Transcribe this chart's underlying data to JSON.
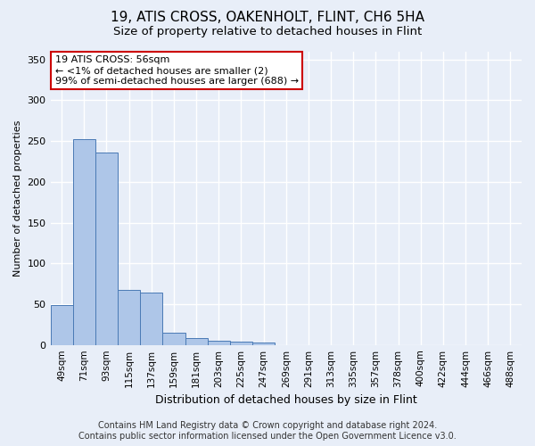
{
  "title1": "19, ATIS CROSS, OAKENHOLT, FLINT, CH6 5HA",
  "title2": "Size of property relative to detached houses in Flint",
  "xlabel": "Distribution of detached houses by size in Flint",
  "ylabel": "Number of detached properties",
  "footer1": "Contains HM Land Registry data © Crown copyright and database right 2024.",
  "footer2": "Contains public sector information licensed under the Open Government Licence v3.0.",
  "annotation_title": "19 ATIS CROSS: 56sqm",
  "annotation_line1": "← <1% of detached houses are smaller (2)",
  "annotation_line2": "99% of semi-detached houses are larger (688) →",
  "bar_values": [
    49,
    252,
    236,
    68,
    64,
    15,
    8,
    5,
    4,
    3,
    0,
    0,
    0,
    0,
    0,
    0,
    0,
    0,
    0,
    0,
    0
  ],
  "categories": [
    "49sqm",
    "71sqm",
    "93sqm",
    "115sqm",
    "137sqm",
    "159sqm",
    "181sqm",
    "203sqm",
    "225sqm",
    "247sqm",
    "269sqm",
    "291sqm",
    "313sqm",
    "335sqm",
    "357sqm",
    "378sqm",
    "400sqm",
    "422sqm",
    "444sqm",
    "466sqm",
    "488sqm"
  ],
  "bar_color": "#aec6e8",
  "bar_edge_color": "#4a7ab5",
  "annotation_box_color": "#ffffff",
  "annotation_box_edge": "#cc0000",
  "background_color": "#e8eef8",
  "grid_color": "#ffffff",
  "ylim": [
    0,
    360
  ],
  "yticks": [
    0,
    50,
    100,
    150,
    200,
    250,
    300,
    350
  ],
  "title1_fontsize": 11,
  "title2_fontsize": 9.5,
  "ylabel_fontsize": 8,
  "xlabel_fontsize": 9,
  "tick_fontsize": 7.5,
  "ytick_fontsize": 8,
  "footer_fontsize": 7,
  "annotation_fontsize": 8
}
